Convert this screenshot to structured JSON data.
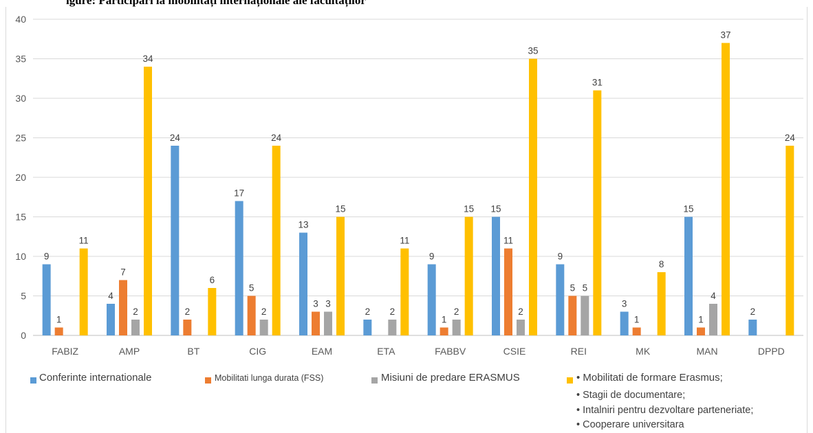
{
  "header": {
    "text": "igure: Participări la mobilități internaționale ale facultăților"
  },
  "colors": {
    "series": [
      "#5b9bd5",
      "#ed7d31",
      "#a5a5a5",
      "#ffc000"
    ],
    "grid": "#d9d9d9",
    "text": "#595959"
  },
  "chart_data": {
    "type": "bar",
    "categories": [
      "FABIZ",
      "AMP",
      "BT",
      "CIG",
      "EAM",
      "ETA",
      "FABBV",
      "CSIE",
      "REI",
      "MK",
      "MAN",
      "DPPD"
    ],
    "yticks": [
      "0",
      "5",
      "10",
      "15",
      "20",
      "25",
      "30",
      "35",
      "40"
    ],
    "ylim": [
      0,
      40
    ],
    "grid": true,
    "legend_position": "bottom",
    "series": [
      {
        "name": "Conferinte internationale",
        "values": [
          9,
          4,
          24,
          17,
          13,
          2,
          9,
          15,
          9,
          3,
          15,
          2
        ]
      },
      {
        "name": "Mobilitati lunga durata (FSS)",
        "values": [
          1,
          7,
          2,
          5,
          3,
          null,
          1,
          11,
          5,
          1,
          1,
          null
        ]
      },
      {
        "name": "Misiuni de predare ERASMUS",
        "values": [
          null,
          2,
          null,
          2,
          3,
          2,
          2,
          2,
          5,
          null,
          4,
          null
        ]
      },
      {
        "name": "• Mobilitati de formare Erasmus;",
        "values": [
          11,
          34,
          6,
          24,
          15,
          11,
          15,
          35,
          31,
          8,
          37,
          24
        ]
      }
    ],
    "legend_extra": [
      "• Stagii de documentare;",
      "• Intalniri pentru dezvoltare parteneriate;",
      "• Cooperare universitara"
    ]
  }
}
